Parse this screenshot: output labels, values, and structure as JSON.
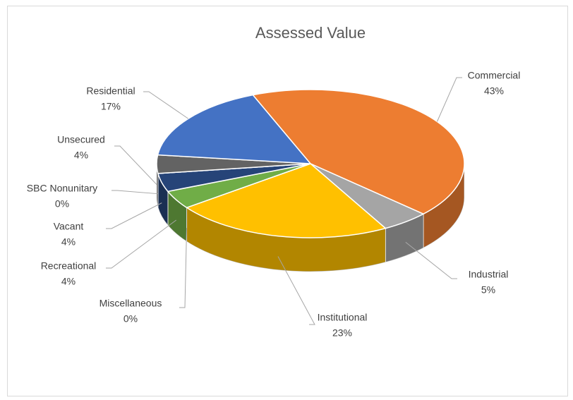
{
  "chart_data": {
    "type": "pie3d",
    "title": "Assessed Value",
    "categories": [
      "Commercial",
      "Industrial",
      "Institutional",
      "Miscellaneous",
      "Recreational",
      "Vacant",
      "SBC Nonunitary",
      "Unsecured",
      "Residential"
    ],
    "values": [
      43,
      5,
      23,
      0,
      4,
      4,
      0,
      4,
      17
    ],
    "value_labels": [
      "43%",
      "5%",
      "23%",
      "0%",
      "4%",
      "4%",
      "0%",
      "4%",
      "17%"
    ],
    "colors": [
      "#ED7D31",
      "#A5A5A5",
      "#FFC000",
      "#5B9BD5",
      "#70AD47",
      "#264478",
      "#9E480E",
      "#636363",
      "#4472C4"
    ]
  }
}
